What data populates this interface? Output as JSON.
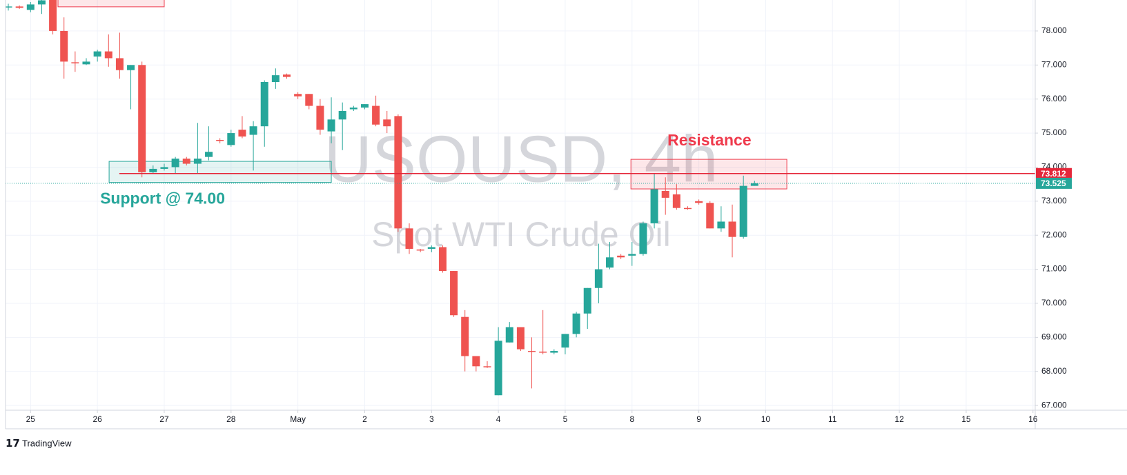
{
  "chart_data": {
    "type": "candlestick",
    "title": "USOUSD, 4h",
    "subtitle": "Spot WTI Crude Oil",
    "up_color": "#26a69a",
    "down_color": "#ef5350",
    "open": [
      78.7,
      78.72,
      78.62,
      78.78,
      79.0,
      78.0,
      77.08,
      77.02,
      77.25,
      77.4,
      77.2,
      76.85,
      77.0,
      73.85,
      73.95,
      74.0,
      74.25,
      74.1,
      74.3,
      74.8,
      74.65,
      75.1,
      74.95,
      75.2,
      76.5,
      76.72,
      76.15,
      76.15,
      75.8,
      75.05,
      75.4,
      75.7,
      75.75,
      75.8,
      75.4,
      75.5,
      72.2,
      71.58,
      71.6,
      71.65,
      70.95,
      69.6,
      68.45,
      68.15,
      67.3,
      68.85,
      69.3,
      68.6,
      68.58,
      68.55,
      68.7,
      69.1,
      69.7,
      70.45,
      71.05,
      71.4,
      71.4,
      71.45,
      72.35,
      73.3,
      73.2,
      72.8,
      73.0,
      72.95,
      72.2,
      72.4,
      71.95,
      73.45
    ],
    "high": [
      78.8,
      78.75,
      78.85,
      79.0,
      79.2,
      78.4,
      77.4,
      77.2,
      77.45,
      77.9,
      77.95,
      77.0,
      77.1,
      74.05,
      74.1,
      74.3,
      74.3,
      75.3,
      75.2,
      74.85,
      75.1,
      75.5,
      75.35,
      76.55,
      76.9,
      76.75,
      76.2,
      76.15,
      76.0,
      76.05,
      75.9,
      75.8,
      75.85,
      76.1,
      75.65,
      75.55,
      72.35,
      71.6,
      71.7,
      71.7,
      70.95,
      69.8,
      68.45,
      68.3,
      69.3,
      69.45,
      69.3,
      69.0,
      69.8,
      68.65,
      69.1,
      69.75,
      70.45,
      71.75,
      71.8,
      71.45,
      71.8,
      72.4,
      73.8,
      73.7,
      73.5,
      72.85,
      73.05,
      73.0,
      72.85,
      72.9,
      73.75,
      73.6
    ],
    "low": [
      78.6,
      78.65,
      78.55,
      78.5,
      77.9,
      76.6,
      76.8,
      77.0,
      77.1,
      76.95,
      76.6,
      75.7,
      73.7,
      73.8,
      73.9,
      73.8,
      74.05,
      73.8,
      74.2,
      74.7,
      74.6,
      74.85,
      73.9,
      74.6,
      76.3,
      76.6,
      76.0,
      75.7,
      74.95,
      74.7,
      74.5,
      75.65,
      75.7,
      75.2,
      75.0,
      72.1,
      71.45,
      71.5,
      71.5,
      70.9,
      69.6,
      68.0,
      68.0,
      68.1,
      67.3,
      68.85,
      68.6,
      67.5,
      68.5,
      68.5,
      68.5,
      69.0,
      69.25,
      70.0,
      71.0,
      71.3,
      71.1,
      71.4,
      72.2,
      72.6,
      72.75,
      72.75,
      72.9,
      72.2,
      72.1,
      71.35,
      71.9,
      73.45
    ],
    "close": [
      78.72,
      78.68,
      78.78,
      78.9,
      78.0,
      77.1,
      77.05,
      77.1,
      77.4,
      77.2,
      76.85,
      77.0,
      73.85,
      73.95,
      74.0,
      74.25,
      74.1,
      74.25,
      74.45,
      74.78,
      75.0,
      74.9,
      75.2,
      76.5,
      76.7,
      76.65,
      76.08,
      75.8,
      75.1,
      75.4,
      75.65,
      75.75,
      75.85,
      75.25,
      75.2,
      72.2,
      71.6,
      71.55,
      71.65,
      70.95,
      69.65,
      68.45,
      68.15,
      68.12,
      68.9,
      69.3,
      68.65,
      68.58,
      68.56,
      68.6,
      69.1,
      69.7,
      70.45,
      71.0,
      71.35,
      71.35,
      71.45,
      72.35,
      73.35,
      73.1,
      72.8,
      72.78,
      72.95,
      72.2,
      72.4,
      71.95,
      73.45,
      73.525
    ],
    "ylim": [
      66.86,
      78.91
    ],
    "yticks": [
      {
        "value": 67,
        "label": "67.000"
      },
      {
        "value": 68,
        "label": "68.000"
      },
      {
        "value": 69,
        "label": "69.000"
      },
      {
        "value": 70,
        "label": "70.000"
      },
      {
        "value": 71,
        "label": "71.000"
      },
      {
        "value": 72,
        "label": "72.000"
      },
      {
        "value": 73,
        "label": "73.000"
      },
      {
        "value": 74,
        "label": "74.000"
      },
      {
        "value": 75,
        "label": "75.000"
      },
      {
        "value": 76,
        "label": "76.000"
      },
      {
        "value": 77,
        "label": "77.000"
      },
      {
        "value": 78,
        "label": "78.000"
      }
    ],
    "xlim": [
      -0.25,
      92.2
    ],
    "xticks": [
      {
        "value": 2,
        "label": "25"
      },
      {
        "value": 8,
        "label": "26"
      },
      {
        "value": 14,
        "label": "27"
      },
      {
        "value": 20,
        "label": "28"
      },
      {
        "value": 26,
        "label": "May"
      },
      {
        "value": 32,
        "label": "2"
      },
      {
        "value": 38,
        "label": "3"
      },
      {
        "value": 44,
        "label": "4"
      },
      {
        "value": 50,
        "label": "5"
      },
      {
        "value": 56,
        "label": "8"
      },
      {
        "value": 62,
        "label": "9"
      },
      {
        "value": 68,
        "label": "10"
      },
      {
        "value": 74,
        "label": "11"
      },
      {
        "value": 80,
        "label": "12"
      },
      {
        "value": 86,
        "label": "15"
      },
      {
        "value": 92,
        "label": "16"
      }
    ],
    "grid": true,
    "lines": [
      {
        "value": 73.812,
        "start": 9.97,
        "color": "#e5273a"
      }
    ],
    "zones": [
      {
        "label": "Support @ 74.00",
        "top": 74.17,
        "bottom": 73.55,
        "start": 9.05,
        "end": 29.0,
        "color": "#26a69a"
      },
      {
        "label": "Resistance",
        "top": 74.23,
        "bottom": 73.36,
        "start": 55.9,
        "end": 69.9,
        "color": "#ef3a4c"
      },
      {
        "top": 79.2,
        "bottom": 78.71,
        "start": 4.46,
        "end": 14.0,
        "color": "#ef3a4c"
      }
    ]
  },
  "brand": "TradingView"
}
